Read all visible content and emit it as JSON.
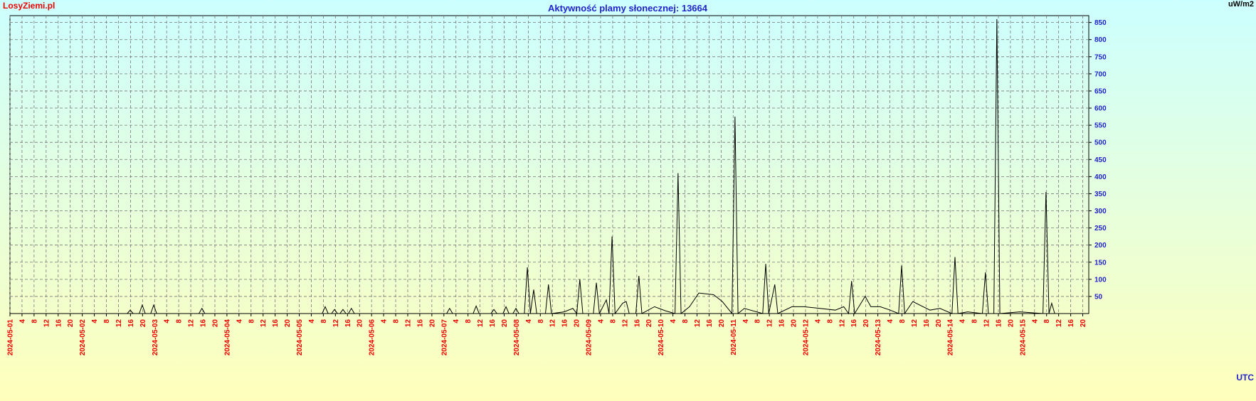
{
  "brand": "LosyZiemi.pl",
  "chart_data": {
    "type": "line",
    "title": "Aktywność plamy słonecznej: 13664",
    "y_label": "uW/m2",
    "x_label": "UTC",
    "grid": true,
    "color": "#000000",
    "xlim": [
      0,
      358
    ],
    "ylim": [
      0,
      870
    ],
    "yticks": [
      50,
      100,
      150,
      200,
      250,
      300,
      350,
      400,
      450,
      500,
      550,
      600,
      650,
      700,
      750,
      800,
      850
    ],
    "xticks": [
      {
        "value": 0,
        "label": "2024-05-01"
      },
      {
        "value": 4,
        "label": "4"
      },
      {
        "value": 8,
        "label": "8"
      },
      {
        "value": 12,
        "label": "12"
      },
      {
        "value": 16,
        "label": "16"
      },
      {
        "value": 20,
        "label": "20"
      },
      {
        "value": 24,
        "label": "2024-05-02"
      },
      {
        "value": 28,
        "label": "4"
      },
      {
        "value": 32,
        "label": "8"
      },
      {
        "value": 36,
        "label": "12"
      },
      {
        "value": 40,
        "label": "16"
      },
      {
        "value": 44,
        "label": "20"
      },
      {
        "value": 48,
        "label": "2024-05-03"
      },
      {
        "value": 52,
        "label": "4"
      },
      {
        "value": 56,
        "label": "8"
      },
      {
        "value": 60,
        "label": "12"
      },
      {
        "value": 64,
        "label": "16"
      },
      {
        "value": 68,
        "label": "20"
      },
      {
        "value": 72,
        "label": "2024-05-04"
      },
      {
        "value": 76,
        "label": "4"
      },
      {
        "value": 80,
        "label": "8"
      },
      {
        "value": 84,
        "label": "12"
      },
      {
        "value": 88,
        "label": "16"
      },
      {
        "value": 92,
        "label": "20"
      },
      {
        "value": 96,
        "label": "2024-05-05"
      },
      {
        "value": 100,
        "label": "4"
      },
      {
        "value": 104,
        "label": "8"
      },
      {
        "value": 108,
        "label": "12"
      },
      {
        "value": 112,
        "label": "16"
      },
      {
        "value": 116,
        "label": "20"
      },
      {
        "value": 120,
        "label": "2024-05-06"
      },
      {
        "value": 124,
        "label": "4"
      },
      {
        "value": 128,
        "label": "8"
      },
      {
        "value": 132,
        "label": "12"
      },
      {
        "value": 136,
        "label": "16"
      },
      {
        "value": 140,
        "label": "20"
      },
      {
        "value": 144,
        "label": "2024-05-07"
      },
      {
        "value": 148,
        "label": "4"
      },
      {
        "value": 152,
        "label": "8"
      },
      {
        "value": 156,
        "label": "12"
      },
      {
        "value": 160,
        "label": "16"
      },
      {
        "value": 164,
        "label": "20"
      },
      {
        "value": 168,
        "label": "2024-05-08"
      },
      {
        "value": 172,
        "label": "4"
      },
      {
        "value": 176,
        "label": "8"
      },
      {
        "value": 180,
        "label": "12"
      },
      {
        "value": 184,
        "label": "16"
      },
      {
        "value": 188,
        "label": "20"
      },
      {
        "value": 192,
        "label": "2024-05-09"
      },
      {
        "value": 196,
        "label": "4"
      },
      {
        "value": 200,
        "label": "8"
      },
      {
        "value": 204,
        "label": "12"
      },
      {
        "value": 208,
        "label": "16"
      },
      {
        "value": 212,
        "label": "20"
      },
      {
        "value": 216,
        "label": "2024-05-10"
      },
      {
        "value": 220,
        "label": "4"
      },
      {
        "value": 224,
        "label": "8"
      },
      {
        "value": 228,
        "label": "12"
      },
      {
        "value": 232,
        "label": "16"
      },
      {
        "value": 236,
        "label": "20"
      },
      {
        "value": 240,
        "label": "2024-05-11"
      },
      {
        "value": 244,
        "label": "4"
      },
      {
        "value": 248,
        "label": "8"
      },
      {
        "value": 252,
        "label": "12"
      },
      {
        "value": 256,
        "label": "16"
      },
      {
        "value": 260,
        "label": "20"
      },
      {
        "value": 264,
        "label": "2024-05-12"
      },
      {
        "value": 268,
        "label": "4"
      },
      {
        "value": 272,
        "label": "8"
      },
      {
        "value": 276,
        "label": "12"
      },
      {
        "value": 280,
        "label": "16"
      },
      {
        "value": 284,
        "label": "20"
      },
      {
        "value": 288,
        "label": "2024-05-13"
      },
      {
        "value": 292,
        "label": "4"
      },
      {
        "value": 296,
        "label": "8"
      },
      {
        "value": 300,
        "label": "12"
      },
      {
        "value": 304,
        "label": "16"
      },
      {
        "value": 308,
        "label": "20"
      },
      {
        "value": 312,
        "label": "2024-05-14"
      },
      {
        "value": 316,
        "label": "4"
      },
      {
        "value": 320,
        "label": "8"
      },
      {
        "value": 324,
        "label": "12"
      },
      {
        "value": 328,
        "label": "16"
      },
      {
        "value": 332,
        "label": "20"
      },
      {
        "value": 336,
        "label": "2024-05-15"
      },
      {
        "value": 340,
        "label": "4"
      },
      {
        "value": 344,
        "label": "8"
      },
      {
        "value": 348,
        "label": "12"
      },
      {
        "value": 352,
        "label": "16"
      },
      {
        "value": 356,
        "label": "20"
      }
    ],
    "x": [
      0,
      38.9,
      39.9,
      40.9,
      42.9,
      43.9,
      44.9,
      46.7,
      47.7,
      48.7,
      62.7,
      63.7,
      64.7,
      103.6,
      104.6,
      105.6,
      106.7,
      107.7,
      108.7,
      109.5,
      110.5,
      111.5,
      112.3,
      113.3,
      114.3,
      144.9,
      145.9,
      146.9,
      153.7,
      154.7,
      155.7,
      159.6,
      160.6,
      161.6,
      163.6,
      164.6,
      165.6,
      166.9,
      167.9,
      168.9,
      170.7,
      171.7,
      172.7,
      173.8,
      174.8,
      177.7,
      178.7,
      179.7,
      183.9,
      186.8,
      188.1,
      189.1,
      190.1,
      193.6,
      194.6,
      195.6,
      197.9,
      198.8,
      199.8,
      200.8,
      203.3,
      204.5,
      205.5,
      207.7,
      208.7,
      209.7,
      213.9,
      217.5,
      220.7,
      221.7,
      222.7,
      225.5,
      228.6,
      233.5,
      236.4,
      239.6,
      240.6,
      241.6,
      243.7,
      249.8,
      250.8,
      251.8,
      253.8,
      254.8,
      259.5,
      263.5,
      273.9,
      276.7,
      278.3,
      279.3,
      280.3,
      283.8,
      285.7,
      288.8,
      292.1,
      294.9,
      295.9,
      296.9,
      299.6,
      305.3,
      308.6,
      312.6,
      313.6,
      314.6,
      317.8,
      322.7,
      323.7,
      324.7,
      326.5,
      327.5,
      328.5,
      335.1,
      342.8,
      343.8,
      344.8,
      345.7,
      346.7,
      358
    ],
    "values": [
      0,
      0,
      10,
      0,
      0,
      25,
      0,
      0,
      25,
      0,
      0,
      15,
      0,
      0,
      20,
      0,
      0,
      12,
      0,
      0,
      12,
      0,
      0,
      15,
      0,
      0,
      15,
      0,
      0,
      22,
      0,
      0,
      12,
      0,
      0,
      20,
      0,
      0,
      15,
      0,
      0,
      135,
      0,
      70,
      0,
      0,
      85,
      0,
      5,
      15,
      0,
      100,
      0,
      0,
      90,
      0,
      40,
      0,
      225,
      0,
      30,
      35,
      0,
      0,
      110,
      0,
      20,
      8,
      0,
      410,
      0,
      20,
      60,
      55,
      35,
      0,
      575,
      0,
      15,
      0,
      145,
      0,
      85,
      0,
      20,
      20,
      10,
      20,
      0,
      95,
      0,
      50,
      20,
      20,
      10,
      0,
      140,
      0,
      35,
      10,
      15,
      0,
      165,
      0,
      5,
      0,
      120,
      0,
      0,
      860,
      0,
      5,
      0,
      355,
      0,
      30,
      0,
      0
    ]
  }
}
